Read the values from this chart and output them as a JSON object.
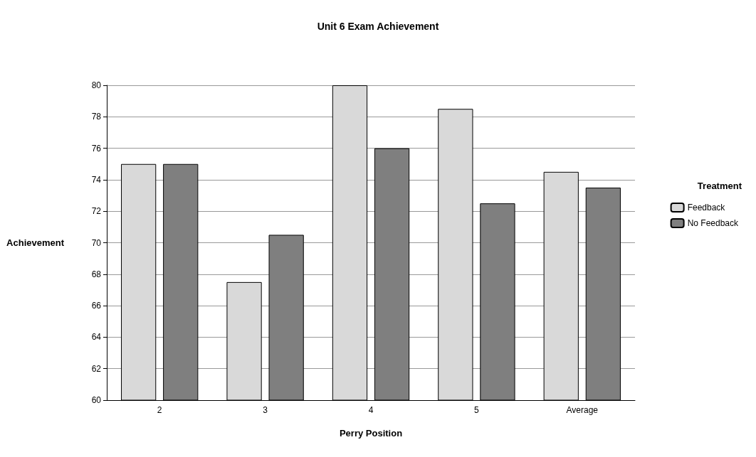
{
  "chart_data": {
    "type": "bar",
    "title": "Unit 6 Exam Achievement",
    "xlabel": "Perry Position",
    "ylabel": "Achievement",
    "legend_title": "Treatment",
    "categories": [
      "2",
      "3",
      "4",
      "5",
      "Average"
    ],
    "series": [
      {
        "name": "Feedback",
        "color": "#d9d9d9",
        "values": [
          75,
          67.5,
          80,
          78.5,
          74.5
        ]
      },
      {
        "name": "No Feedback",
        "color": "#7f7f7f",
        "values": [
          75,
          70.5,
          76,
          72.5,
          73.5
        ]
      }
    ],
    "ylim": [
      60,
      80
    ],
    "yticks": [
      60,
      62,
      64,
      66,
      68,
      70,
      72,
      74,
      76,
      78,
      80
    ],
    "grid": "y",
    "legend": "right"
  }
}
